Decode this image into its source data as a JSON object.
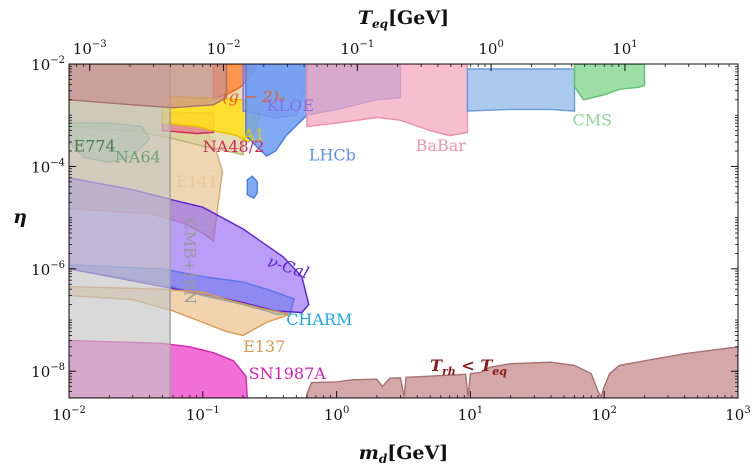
{
  "chart_data": {
    "type": "area",
    "title": "",
    "xlabel": {
      "main": "m",
      "sub": "d",
      "unit": "[GeV]"
    },
    "ylabel": "η",
    "x2label": {
      "main": "T",
      "sub": "eq",
      "unit": "[GeV]"
    },
    "xscale": "log",
    "yscale": "log",
    "xlim": [
      0.01,
      1000
    ],
    "ylim": [
      3e-09,
      0.01
    ],
    "x2lim": [
      0.0007,
      70
    ],
    "x_ticks": [
      {
        "value": 0.01,
        "base": "10",
        "exp": "−2"
      },
      {
        "value": 0.1,
        "base": "10",
        "exp": "−1"
      },
      {
        "value": 1,
        "base": "10",
        "exp": "0"
      },
      {
        "value": 10,
        "base": "10",
        "exp": "1"
      },
      {
        "value": 100,
        "base": "10",
        "exp": "2"
      },
      {
        "value": 1000,
        "base": "10",
        "exp": "3"
      }
    ],
    "x2_ticks": [
      {
        "value": 0.001,
        "base": "10",
        "exp": "−3"
      },
      {
        "value": 0.01,
        "base": "10",
        "exp": "−2"
      },
      {
        "value": 0.1,
        "base": "10",
        "exp": "−1"
      },
      {
        "value": 1,
        "base": "10",
        "exp": "0"
      },
      {
        "value": 10,
        "base": "10",
        "exp": "1"
      }
    ],
    "y_ticks": [
      {
        "value": 1e-08,
        "base": "10",
        "exp": "−8"
      },
      {
        "value": 1e-06,
        "base": "10",
        "exp": "−6"
      },
      {
        "value": 0.0001,
        "base": "10",
        "exp": "−4"
      },
      {
        "value": 0.01,
        "base": "10",
        "exp": "−2"
      }
    ],
    "regions": [
      {
        "name": "E141",
        "label": "E141",
        "color": "#e8c89a",
        "opacity": 0.75,
        "stroke": "#d8a870",
        "points": [
          [
            0.01,
            1.5e-05
          ],
          [
            0.04,
            1.2e-05
          ],
          [
            0.07,
            8e-06
          ],
          [
            0.1,
            5e-06
          ],
          [
            0.12,
            3.5e-06
          ],
          [
            0.14,
            8e-05
          ],
          [
            0.12,
            0.0003
          ],
          [
            0.1,
            0.0006
          ],
          [
            0.06,
            0.0015
          ],
          [
            0.03,
            0.003
          ],
          [
            0.01,
            0.004
          ]
        ],
        "label_at": [
          0.063,
          4e-05
        ],
        "label_color": "#e8c89a"
      },
      {
        "name": "NA64",
        "label": "NA64",
        "color": "#d9d29a",
        "opacity": 0.75,
        "stroke": "#b8b070",
        "points": [
          [
            0.01,
            0.0006
          ],
          [
            0.03,
            0.0005
          ],
          [
            0.06,
            0.00035
          ],
          [
            0.1,
            0.00025
          ],
          [
            0.2,
            0.00017
          ],
          [
            0.2,
            0.01
          ],
          [
            0.01,
            0.01
          ]
        ],
        "label_at": [
          0.022,
          0.00012
        ],
        "label_color": "#6ea07a"
      },
      {
        "name": "E774",
        "label": "E774",
        "color": "#9cc59a",
        "opacity": 0.7,
        "stroke": "#7aa57a",
        "points": [
          [
            0.01,
            0.0003
          ],
          [
            0.013,
            0.00015
          ],
          [
            0.02,
            0.00012
          ],
          [
            0.03,
            0.00016
          ],
          [
            0.04,
            0.00035
          ],
          [
            0.035,
            0.0006
          ],
          [
            0.02,
            0.0007
          ],
          [
            0.01,
            0.0007
          ]
        ],
        "label_at": [
          0.0108,
          0.000195
        ],
        "label_color": "#4a7a52"
      },
      {
        "name": "NA48/2",
        "label": "NA48/2",
        "color": "#e65a80",
        "opacity": 0.55,
        "stroke": "#d4285a",
        "points": [
          [
            0.05,
            0.0005
          ],
          [
            0.09,
            0.00044
          ],
          [
            0.12,
            0.00046
          ],
          [
            0.12,
            0.0011
          ],
          [
            0.05,
            0.0011
          ]
        ],
        "label_at": [
          0.1,
          0.00019
        ],
        "label_color": "#d4285a"
      },
      {
        "name": "A1",
        "label": "A1",
        "color": "#ffe020",
        "opacity": 0.9,
        "stroke": "#e8c000",
        "points": [
          [
            0.05,
            0.0007
          ],
          [
            0.09,
            0.0006
          ],
          [
            0.12,
            0.0005
          ],
          [
            0.18,
            0.0004
          ],
          [
            0.22,
            0.0003
          ],
          [
            0.25,
            0.0005
          ],
          [
            0.27,
            0.0011
          ],
          [
            0.2,
            0.002
          ],
          [
            0.1,
            0.0022
          ],
          [
            0.05,
            0.0023
          ]
        ],
        "label_at": [
          0.2,
          0.00032
        ],
        "label_color": "#e6c700"
      },
      {
        "name": "g-2",
        "label": "(g − 2)ₑ",
        "color": "#ff8a38",
        "opacity": 0.85,
        "stroke": "#f06020",
        "points": [
          [
            0.12,
            0.0022
          ],
          [
            0.15,
            0.0025
          ],
          [
            0.19,
            0.0035
          ],
          [
            0.22,
            0.005
          ],
          [
            0.25,
            0.008
          ],
          [
            0.25,
            0.01
          ],
          [
            0.12,
            0.01
          ]
        ],
        "label_at": [
          0.14,
          0.0018
        ],
        "label_color": "#ee5a22"
      },
      {
        "name": "KLOE",
        "label": "KLOE",
        "color": "#9a80e8",
        "opacity": 0.55,
        "stroke": "#8a70d8",
        "points": [
          [
            0.2,
            0.0012
          ],
          [
            0.35,
            0.0009
          ],
          [
            0.5,
            0.001
          ],
          [
            0.55,
            0.0022
          ],
          [
            0.6,
            0.003
          ],
          [
            0.6,
            0.01
          ],
          [
            0.2,
            0.01
          ]
        ],
        "label_at": [
          0.3,
          0.0012
        ],
        "label_color": "#8870e0"
      },
      {
        "name": "LHCb",
        "label": "LHCb",
        "color": "#6a9cf2",
        "opacity": 0.85,
        "stroke": "#4a7ce0",
        "points": [
          [
            0.21,
            0.0025
          ],
          [
            0.21,
            0.0004
          ],
          [
            0.25,
            0.00025
          ],
          [
            0.3,
            0.00016
          ],
          [
            0.35,
            0.0002
          ],
          [
            0.42,
            0.0004
          ],
          [
            0.6,
            0.001
          ],
          [
            1,
            0.0013
          ],
          [
            2,
            0.002
          ],
          [
            3,
            0.0022
          ],
          [
            3,
            0.01
          ],
          [
            0.21,
            0.01
          ]
        ],
        "label_at": [
          0.62,
          0.00013
        ],
        "label_color": "#5b8fec"
      },
      {
        "name": "LHCb-island",
        "label": "",
        "color": "#6a9cf2",
        "opacity": 0.85,
        "stroke": "#4a7ce0",
        "points": [
          [
            0.215,
            2.8e-05
          ],
          [
            0.24,
            2.4e-05
          ],
          [
            0.255,
            3e-05
          ],
          [
            0.255,
            5e-05
          ],
          [
            0.235,
            6.4e-05
          ],
          [
            0.215,
            5.5e-05
          ]
        ]
      },
      {
        "name": "BaBar",
        "label": "BaBar",
        "color": "#f4a8c0",
        "opacity": 0.75,
        "stroke": "#ec90ac",
        "points": [
          [
            0.6,
            0.0006
          ],
          [
            1,
            0.0007
          ],
          [
            2,
            0.0009
          ],
          [
            3,
            0.0008
          ],
          [
            5,
            0.0005
          ],
          [
            7,
            0.0004
          ],
          [
            9.5,
            0.00046
          ],
          [
            9.5,
            0.01
          ],
          [
            0.6,
            0.01
          ]
        ],
        "label_at": [
          3.9,
          0.0002
        ],
        "label_color": "#f094b0"
      },
      {
        "name": "BaBar-upper",
        "label": "",
        "color": "#8fb8e8",
        "opacity": 0.75,
        "stroke": "#6a9ad8",
        "points": [
          [
            9.5,
            0.0012
          ],
          [
            20,
            0.0013
          ],
          [
            40,
            0.0013
          ],
          [
            60,
            0.0012
          ],
          [
            60,
            0.008
          ],
          [
            9.5,
            0.008
          ]
        ]
      },
      {
        "name": "CMS",
        "label": "CMS",
        "color": "#8cd896",
        "opacity": 0.85,
        "stroke": "#60c070",
        "points": [
          [
            60,
            0.0036
          ],
          [
            70,
            0.002
          ],
          [
            100,
            0.0025
          ],
          [
            130,
            0.0032
          ],
          [
            180,
            0.0035
          ],
          [
            200,
            0.0038
          ],
          [
            200,
            0.01
          ],
          [
            60,
            0.01
          ]
        ],
        "label_at": [
          58,
          0.00063
        ],
        "label_color": "#8cd896"
      },
      {
        "name": "CHARM",
        "label": "CHARM",
        "color": "#3aa8e8",
        "opacity": 0.55,
        "stroke": "#1a98e0",
        "points": [
          [
            0.01,
            1e-06
          ],
          [
            0.05,
            5e-07
          ],
          [
            0.1,
            3e-07
          ],
          [
            0.2,
            2e-07
          ],
          [
            0.3,
            1.5e-07
          ],
          [
            0.35,
            1.3e-07
          ],
          [
            0.45,
            1.3e-07
          ],
          [
            0.48,
            2.6e-07
          ],
          [
            0.3,
            4e-07
          ],
          [
            0.2,
            5.5e-07
          ],
          [
            0.1,
            7e-07
          ],
          [
            0.05,
            1e-06
          ],
          [
            0.01,
            1.2e-06
          ]
        ],
        "label_at": [
          0.42,
          8e-08
        ],
        "label_color": "#1aaae8"
      },
      {
        "name": "nu-Cal",
        "label": "ν-Cal",
        "color": "#8a5cf0",
        "opacity": 0.6,
        "stroke": "#5b24d8",
        "points": [
          [
            0.01,
            6e-05
          ],
          [
            0.03,
            3.5e-05
          ],
          [
            0.06,
            2.2e-05
          ],
          [
            0.1,
            1.6e-05
          ],
          [
            0.2,
            6e-06
          ],
          [
            0.4,
            1.7e-06
          ],
          [
            0.55,
            7e-07
          ],
          [
            0.62,
            2e-07
          ],
          [
            0.55,
            1.4e-07
          ],
          [
            0.35,
            1.5e-07
          ],
          [
            0.2,
            2.2e-07
          ],
          [
            0.1,
            3.2e-07
          ],
          [
            0.05,
            4.5e-07
          ],
          [
            0.01,
            1e-06
          ]
        ],
        "label_at": [
          0.3,
          1.15e-06
        ],
        "label_color": "#5b24d8"
      },
      {
        "name": "E137",
        "label": "E137",
        "color": "#e8b878",
        "opacity": 0.6,
        "stroke": "#d89a50",
        "points": [
          [
            0.01,
            3e-07
          ],
          [
            0.03,
            2.5e-07
          ],
          [
            0.06,
            1.5e-07
          ],
          [
            0.1,
            9e-08
          ],
          [
            0.15,
            6e-08
          ],
          [
            0.2,
            5e-08
          ],
          [
            0.3,
            9e-08
          ],
          [
            0.45,
            1.3e-07
          ],
          [
            0.3,
            1.6e-07
          ],
          [
            0.15,
            2.5e-07
          ],
          [
            0.1,
            3.5e-07
          ],
          [
            0.05,
            4e-07
          ],
          [
            0.01,
            4.5e-07
          ]
        ],
        "label_at": [
          0.2,
          2.4e-08
        ],
        "label_color": "#d89a50"
      },
      {
        "name": "SN1987A",
        "label": "SN1987A",
        "color": "#ee40c8",
        "opacity": 0.75,
        "stroke": "#d820b0",
        "points": [
          [
            0.01,
            3e-09
          ],
          [
            0.215,
            3e-09
          ],
          [
            0.21,
            8e-09
          ],
          [
            0.17,
            1.6e-08
          ],
          [
            0.12,
            2.3e-08
          ],
          [
            0.08,
            3e-08
          ],
          [
            0.05,
            3.5e-08
          ],
          [
            0.01,
            4e-08
          ]
        ],
        "label_at": [
          0.22,
          7e-09
        ],
        "label_color": "#d820b0"
      },
      {
        "name": "CMB-IBN",
        "label": "CMB+IBN",
        "color": "#c4c4c4",
        "opacity": 0.65,
        "stroke": "#a0a0a0",
        "points": [
          [
            0.01,
            3e-09
          ],
          [
            0.057,
            3e-09
          ],
          [
            0.057,
            0.01
          ],
          [
            0.01,
            0.01
          ]
        ],
        "label_at": [
          0.073,
          1.4e-06
        ],
        "label_color": "#999999"
      },
      {
        "name": "Trh",
        "label": "T_rh < T_eq",
        "color": "#c89090",
        "opacity": 0.72,
        "stroke": "#a87070",
        "points": [
          [
            0.01,
            0.01
          ],
          [
            0.01,
            0.002
          ],
          [
            0.03,
            0.0016
          ],
          [
            0.06,
            0.0014
          ],
          [
            0.12,
            0.0016
          ],
          [
            0.15,
            0.0022
          ],
          [
            0.15,
            0.01
          ]
        ],
        "label_at": [
          5,
          1e-08
        ],
        "label_color": "#8a1a1a"
      },
      {
        "name": "Trh-lower",
        "label": "",
        "color": "#c89090",
        "opacity": 0.78,
        "stroke": "#a87070",
        "points": [
          [
            0.01,
            3e-09
          ],
          [
            0.01,
            3e-09
          ],
          [
            0.6,
            3e-09
          ],
          [
            0.6,
            3.6e-09
          ],
          [
            0.65,
            6e-09
          ],
          [
            1,
            6.2e-09
          ],
          [
            1.3,
            6.8e-09
          ],
          [
            2,
            7e-09
          ],
          [
            2.2,
            5e-09
          ],
          [
            2.5,
            7.3e-09
          ],
          [
            3,
            7.4e-09
          ],
          [
            3.2,
            3.2e-09
          ],
          [
            3.3,
            7.6e-09
          ],
          [
            4,
            7.8e-09
          ],
          [
            6,
            8.2e-09
          ],
          [
            8,
            8.5e-09
          ],
          [
            9.2,
            8.8e-09
          ],
          [
            9.6,
            3.2e-09
          ],
          [
            10,
            9e-09
          ],
          [
            12,
            9.5e-09
          ],
          [
            14,
            1.2e-08
          ],
          [
            20,
            1.4e-08
          ],
          [
            40,
            1.5e-08
          ],
          [
            60,
            1.3e-08
          ],
          [
            80,
            9e-09
          ],
          [
            90,
            4e-09
          ],
          [
            95,
            3.2e-09
          ],
          [
            100,
            5e-09
          ],
          [
            110,
            9e-09
          ],
          [
            130,
            1.3e-08
          ],
          [
            200,
            1.6e-08
          ],
          [
            400,
            2.2e-08
          ],
          [
            1000,
            3e-08
          ],
          [
            1000,
            3e-09
          ]
        ]
      }
    ],
    "labels": [
      {
        "text": "KLOE",
        "color": "#8870e0"
      },
      {
        "text": "(g − 2)ₑ",
        "color": "#ee5a22"
      },
      {
        "text": "A1",
        "color": "#e6c700"
      },
      {
        "text": "NA48/2",
        "color": "#d4285a"
      },
      {
        "text": "E774",
        "color": "#4a7a52"
      },
      {
        "text": "NA64",
        "color": "#6ea07a"
      },
      {
        "text": "E141",
        "color": "#e8c89a"
      },
      {
        "text": "LHCb",
        "color": "#5b8fec"
      },
      {
        "text": "BaBar",
        "color": "#f094b0"
      },
      {
        "text": "CMS",
        "color": "#8cd896"
      },
      {
        "text": "ν-Cal",
        "color": "#5b24d8"
      },
      {
        "text": "CHARM",
        "color": "#1aaae8"
      },
      {
        "text": "E137",
        "color": "#d89a50"
      },
      {
        "text": "SN1987A",
        "color": "#d820b0"
      },
      {
        "text": "CMB+IBN",
        "color": "#999999"
      }
    ],
    "trh_label": {
      "t1": "T",
      "s1": "rh",
      "op": " < ",
      "t2": "T",
      "s2": "eq",
      "color": "#8a1a1a"
    }
  }
}
